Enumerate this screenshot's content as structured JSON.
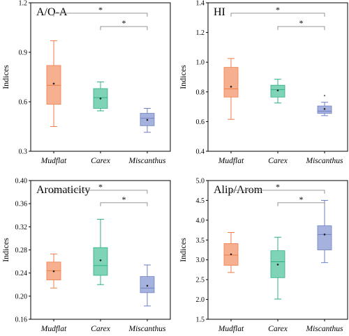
{
  "chart_data": [
    {
      "type": "box",
      "title": "A/O-A",
      "ylabel": "Indices",
      "xlabel": "",
      "ylim": [
        0.3,
        1.2
      ],
      "yticks": [
        "0.3",
        "0.6",
        "0.9",
        "1.2"
      ],
      "categories": [
        "Mudflat",
        "Carex",
        "Miscanthus"
      ],
      "boxes": [
        {
          "category": "Mudflat",
          "whisker_low": 0.45,
          "q1": 0.585,
          "median": 0.7,
          "q3": 0.82,
          "whisker_high": 0.97,
          "mean": 0.71,
          "color": "#f6b08f",
          "line_color": "#f07e4a"
        },
        {
          "category": "Carex",
          "whisker_low": 0.545,
          "q1": 0.56,
          "median": 0.625,
          "q3": 0.68,
          "whisker_high": 0.72,
          "mean": 0.62,
          "color": "#7fd3b6",
          "line_color": "#2fb085"
        },
        {
          "category": "Miscanthus",
          "whisker_low": 0.415,
          "q1": 0.455,
          "median": 0.5,
          "q3": 0.53,
          "whisker_high": 0.56,
          "mean": 0.49,
          "color": "#a6b2de",
          "line_color": "#6f7fc3"
        }
      ],
      "outliers": [],
      "significance": [
        {
          "from": "Mudflat",
          "to": "Miscanthus",
          "label": "*"
        },
        {
          "from": "Carex",
          "to": "Miscanthus",
          "label": "*"
        }
      ]
    },
    {
      "type": "box",
      "title": "HI",
      "ylabel": "Indices",
      "xlabel": "",
      "ylim": [
        0.4,
        1.4
      ],
      "yticks": [
        "0.4",
        "0.6",
        "0.8",
        "1.0",
        "1.2",
        "1.4"
      ],
      "categories": [
        "Mudflat",
        "Carex",
        "Miscanthus"
      ],
      "boxes": [
        {
          "category": "Mudflat",
          "whisker_low": 0.615,
          "q1": 0.765,
          "median": 0.82,
          "q3": 0.965,
          "whisker_high": 1.025,
          "mean": 0.835,
          "color": "#f6b08f",
          "line_color": "#f07e4a"
        },
        {
          "category": "Carex",
          "whisker_low": 0.725,
          "q1": 0.765,
          "median": 0.815,
          "q3": 0.845,
          "whisker_high": 0.885,
          "mean": 0.81,
          "color": "#7fd3b6",
          "line_color": "#2fb085"
        },
        {
          "category": "Miscanthus",
          "whisker_low": 0.64,
          "q1": 0.655,
          "median": 0.67,
          "q3": 0.705,
          "whisker_high": 0.73,
          "mean": 0.685,
          "color": "#a6b2de",
          "line_color": "#6f7fc3"
        }
      ],
      "outliers": [
        {
          "category": "Miscanthus",
          "value": 0.775
        }
      ],
      "significance": [
        {
          "from": "Mudflat",
          "to": "Miscanthus",
          "label": "*"
        },
        {
          "from": "Carex",
          "to": "Miscanthus",
          "label": "*"
        }
      ]
    },
    {
      "type": "box",
      "title": "Aromaticity",
      "ylabel": "Indices",
      "xlabel": "",
      "ylim": [
        0.16,
        0.4
      ],
      "yticks": [
        "0.16",
        "0.20",
        "0.24",
        "0.28",
        "0.32",
        "0.36",
        "0.40"
      ],
      "categories": [
        "Mudflat",
        "Carex",
        "Miscanthus"
      ],
      "boxes": [
        {
          "category": "Mudflat",
          "whisker_low": 0.214,
          "q1": 0.228,
          "median": 0.244,
          "q3": 0.259,
          "whisker_high": 0.273,
          "mean": 0.243,
          "color": "#f6b08f",
          "line_color": "#f07e4a"
        },
        {
          "category": "Carex",
          "whisker_low": 0.22,
          "q1": 0.236,
          "median": 0.253,
          "q3": 0.284,
          "whisker_high": 0.333,
          "mean": 0.262,
          "color": "#7fd3b6",
          "line_color": "#2fb085"
        },
        {
          "category": "Miscanthus",
          "whisker_low": 0.183,
          "q1": 0.206,
          "median": 0.214,
          "q3": 0.234,
          "whisker_high": 0.254,
          "mean": 0.218,
          "color": "#a6b2de",
          "line_color": "#6f7fc3"
        }
      ],
      "outliers": [],
      "significance": [
        {
          "from": "Mudflat",
          "to": "Miscanthus",
          "label": "*"
        },
        {
          "from": "Carex",
          "to": "Miscanthus",
          "label": "*"
        }
      ]
    },
    {
      "type": "box",
      "title": "Alip/Arom",
      "ylabel": "Indices",
      "xlabel": "",
      "ylim": [
        1.5,
        5.0
      ],
      "yticks": [
        "1.5",
        "2.0",
        "2.5",
        "3.0",
        "3.5",
        "4.0",
        "4.5",
        "5.0"
      ],
      "categories": [
        "Mudflat",
        "Carex",
        "Miscanthus"
      ],
      "boxes": [
        {
          "category": "Mudflat",
          "whisker_low": 2.68,
          "q1": 2.86,
          "median": 3.12,
          "q3": 3.41,
          "whisker_high": 3.69,
          "mean": 3.14,
          "color": "#f6b08f",
          "line_color": "#f07e4a"
        },
        {
          "category": "Carex",
          "whisker_low": 2.01,
          "q1": 2.55,
          "median": 2.95,
          "q3": 3.23,
          "whisker_high": 3.57,
          "mean": 2.88,
          "color": "#7fd3b6",
          "line_color": "#2fb085"
        },
        {
          "category": "Miscanthus",
          "whisker_low": 2.93,
          "q1": 3.25,
          "median": 3.64,
          "q3": 3.86,
          "whisker_high": 4.5,
          "mean": 3.64,
          "color": "#a6b2de",
          "line_color": "#6f7fc3"
        }
      ],
      "outliers": [],
      "significance": [
        {
          "from": "Mudflat",
          "to": "Miscanthus",
          "label": "*"
        },
        {
          "from": "Carex",
          "to": "Miscanthus",
          "label": "*"
        }
      ]
    }
  ]
}
